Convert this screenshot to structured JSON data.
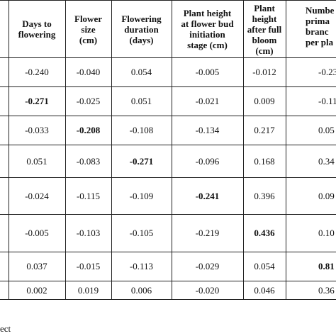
{
  "table": {
    "headers": [
      {
        "lines": [
          "Days to",
          "flowering"
        ]
      },
      {
        "lines": [
          "Flower",
          "size",
          "(cm)"
        ]
      },
      {
        "lines": [
          "Flowering",
          "duration",
          "(days)"
        ]
      },
      {
        "lines": [
          "Plant height",
          "at flower bud",
          "initiation",
          "stage (cm)"
        ]
      },
      {
        "lines": [
          "Plant",
          "height",
          "after full",
          "bloom",
          "(cm)"
        ]
      },
      {
        "lines": [
          "Numbe",
          "prima",
          "branc",
          "per pla"
        ]
      }
    ],
    "rows": [
      {
        "cells": [
          "-0.240",
          "-0.040",
          "0.054",
          "-0.005",
          "-0.012",
          "-0.23"
        ],
        "bold_index": -1
      },
      {
        "cells": [
          "-0.271",
          "-0.025",
          "0.051",
          "-0.021",
          "0.009",
          "-0.11"
        ],
        "bold_index": 0
      },
      {
        "cells": [
          "-0.033",
          "-0.208",
          "-0.108",
          "-0.134",
          "0.217",
          "0.05"
        ],
        "bold_index": 1
      },
      {
        "cells": [
          "0.051",
          "-0.083",
          "-0.271",
          "-0.096",
          "0.168",
          "0.34"
        ],
        "bold_index": 2
      },
      {
        "cells": [
          "-0.024",
          "-0.115",
          "-0.109",
          "-0.241",
          "0.396",
          "0.09"
        ],
        "bold_index": 3
      },
      {
        "cells": [
          "-0.005",
          "-0.103",
          "-0.105",
          "-0.219",
          "0.436",
          "0.10"
        ],
        "bold_index": 4
      },
      {
        "cells": [
          "0.037",
          "-0.015",
          "-0.113",
          "-0.029",
          "0.054",
          "0.81"
        ],
        "bold_index": 5
      },
      {
        "cells": [
          "0.002",
          "0.019",
          "0.006",
          "-0.020",
          "0.046",
          "0.36"
        ],
        "bold_index": -1
      }
    ]
  },
  "footnote": "ect"
}
